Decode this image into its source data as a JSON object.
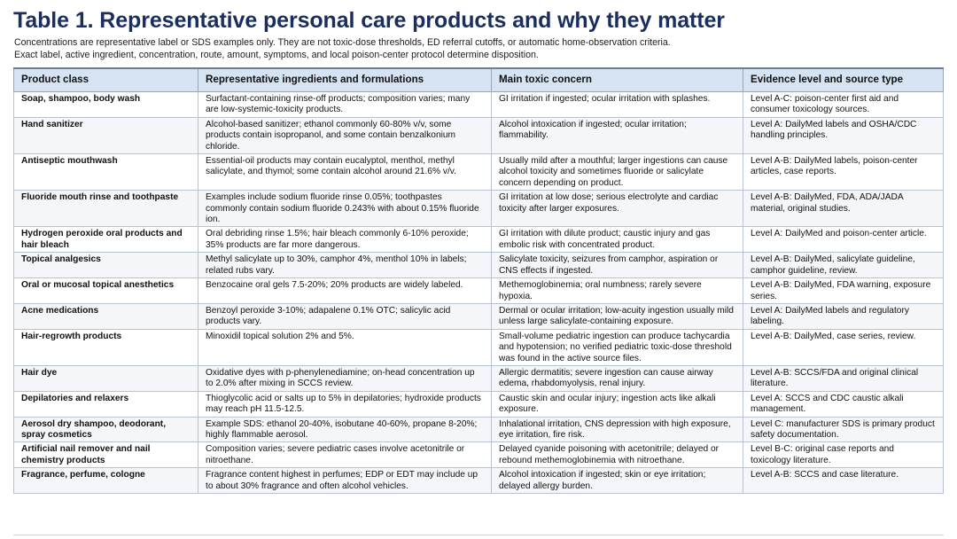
{
  "title": "Table 1. Representative personal care products and why they matter",
  "note": "Concentrations are representative label or SDS examples only. They are not toxic-dose thresholds, ED referral cutoffs, or automatic home-observation criteria.\nExact label, active ingredient, concentration, route, amount, symptoms, and local poison-center protocol determine disposition.",
  "headers": [
    "Product class",
    "Representative ingredients and formulations",
    "Main toxic concern",
    "Evidence level and source type"
  ],
  "rows": [
    {
      "product_class": "Soap, shampoo, body wash",
      "ingredients": "Surfactant-containing rinse-off products; composition varies; many are low-systemic-toxicity products.",
      "concern": "GI irritation if ingested; ocular irritation with splashes.",
      "evidence": "Level A-C: poison-center first aid and consumer toxicology sources."
    },
    {
      "product_class": "Hand sanitizer",
      "ingredients": "Alcohol-based sanitizer; ethanol commonly 60-80% v/v, some products contain isopropanol, and some contain benzalkonium chloride.",
      "concern": "Alcohol intoxication if ingested; ocular irritation; flammability.",
      "evidence": "Level A: DailyMed labels and OSHA/CDC handling principles."
    },
    {
      "product_class": "Antiseptic mouthwash",
      "ingredients": "Essential-oil products may contain eucalyptol, menthol, methyl salicylate, and thymol; some contain alcohol around 21.6% v/v.",
      "concern": "Usually mild after a mouthful; larger ingestions can cause alcohol toxicity and sometimes fluoride or salicylate concern depending on product.",
      "evidence": "Level A-B: DailyMed labels, poison-center articles, case reports."
    },
    {
      "product_class": "Fluoride mouth rinse and toothpaste",
      "ingredients": "Examples include sodium fluoride rinse 0.05%; toothpastes commonly contain sodium fluoride 0.243% with about 0.15% fluoride ion.",
      "concern": "GI irritation at low dose; serious electrolyte and cardiac toxicity after larger exposures.",
      "evidence": "Level A-B: DailyMed, FDA, ADA/JADA material, original studies."
    },
    {
      "product_class": "Hydrogen peroxide oral products and hair bleach",
      "ingredients": "Oral debriding rinse 1.5%; hair bleach commonly 6-10% peroxide; 35% products are far more dangerous.",
      "concern": "GI irritation with dilute product; caustic injury and gas embolic risk with concentrated product.",
      "evidence": "Level A: DailyMed and poison-center article."
    },
    {
      "product_class": "Topical analgesics",
      "ingredients": "Methyl salicylate up to 30%, camphor 4%, menthol 10% in labels; related rubs vary.",
      "concern": "Salicylate toxicity, seizures from camphor, aspiration or CNS effects if ingested.",
      "evidence": "Level A-B: DailyMed, salicylate guideline, camphor guideline, review."
    },
    {
      "product_class": "Oral or mucosal topical anesthetics",
      "ingredients": "Benzocaine oral gels 7.5-20%; 20% products are widely labeled.",
      "concern": "Methemoglobinemia; oral numbness; rarely severe hypoxia.",
      "evidence": "Level A-B: DailyMed, FDA warning, exposure series."
    },
    {
      "product_class": "Acne medications",
      "ingredients": "Benzoyl peroxide 3-10%; adapalene 0.1% OTC; salicylic acid products vary.",
      "concern": "Dermal or ocular irritation; low-acuity ingestion usually mild unless large salicylate-containing exposure.",
      "evidence": "Level A: DailyMed labels and regulatory labeling."
    },
    {
      "product_class": "Hair-regrowth products",
      "ingredients": "Minoxidil topical solution 2% and 5%.",
      "concern": "Small-volume pediatric ingestion can produce tachycardia and hypotension; no verified pediatric toxic-dose threshold was found in the active source files.",
      "evidence": "Level A-B: DailyMed, case series, review."
    },
    {
      "product_class": "Hair dye",
      "ingredients": "Oxidative dyes with p-phenylenediamine; on-head concentration up to 2.0% after mixing in SCCS review.",
      "concern": "Allergic dermatitis; severe ingestion can cause airway edema, rhabdomyolysis, renal injury.",
      "evidence": "Level A-B: SCCS/FDA and original clinical literature."
    },
    {
      "product_class": "Depilatories and relaxers",
      "ingredients": "Thioglycolic acid or salts up to 5% in depilatories; hydroxide products may reach pH 11.5-12.5.",
      "concern": "Caustic skin and ocular injury; ingestion acts like alkali exposure.",
      "evidence": "Level A: SCCS and CDC caustic alkali management."
    },
    {
      "product_class": "Aerosol dry shampoo, deodorant, spray cosmetics",
      "ingredients": "Example SDS: ethanol 20-40%, isobutane 40-60%, propane 8-20%; highly flammable aerosol.",
      "concern": "Inhalational irritation, CNS depression with high exposure, eye irritation, fire risk.",
      "evidence": "Level C: manufacturer SDS is primary product safety documentation."
    },
    {
      "product_class": "Artificial nail remover and nail chemistry products",
      "ingredients": "Composition varies; severe pediatric cases involve acetonitrile or nitroethane.",
      "concern": "Delayed cyanide poisoning with acetonitrile; delayed or rebound methemoglobinemia with nitroethane.",
      "evidence": "Level B-C: original case reports and toxicology literature."
    },
    {
      "product_class": "Fragrance, perfume, cologne",
      "ingredients": "Fragrance content highest in perfumes; EDP or EDT may include up to about 30% fragrance and often alcohol vehicles.",
      "concern": "Alcohol intoxication if ingested; skin or eye irritation; delayed allergy burden.",
      "evidence": "Level A-B: SCCS and case literature."
    }
  ],
  "colors": {
    "title": "#1b2f5e",
    "header_bg": "#d6e3f3",
    "grid_line": "#b9c2cf"
  }
}
